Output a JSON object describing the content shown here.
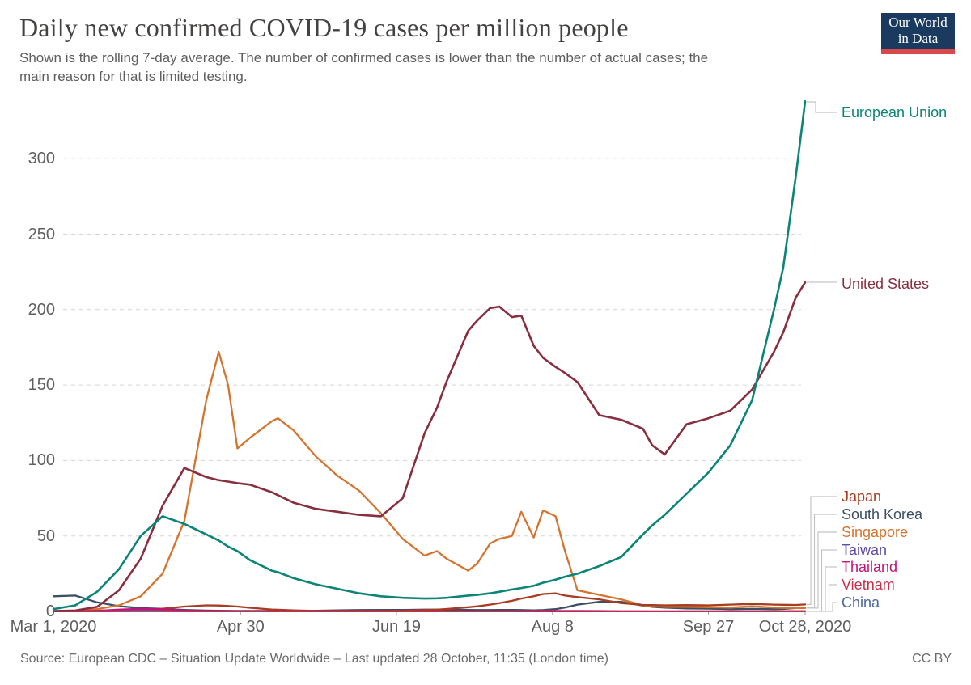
{
  "header": {
    "title": "Daily new confirmed COVID-19 cases per million people",
    "subtitle_line1": "Shown is the rolling 7-day average. The number of confirmed cases is lower than the number of actual cases; the",
    "subtitle_line2": "main reason for that is limited testing.",
    "logo": {
      "line1": "Our World",
      "line2": "in Data",
      "bg_color": "#1b3a5f",
      "accent_color": "#d8494b"
    }
  },
  "chart_data": {
    "type": "line",
    "title": "Daily new confirmed COVID-19 cases per million people",
    "xlabel": "",
    "ylabel": "",
    "grid": {
      "horizontal": true,
      "style": "dashed",
      "color": "#d5d5d5"
    },
    "legend_position": "right-edge-labels",
    "x_axis": {
      "range_days": [
        0,
        241
      ],
      "tick_labels": [
        {
          "label": "Mar 1, 2020",
          "day": 0
        },
        {
          "label": "Apr 30",
          "day": 60
        },
        {
          "label": "Jun 19",
          "day": 110
        },
        {
          "label": "Aug 8",
          "day": 160
        },
        {
          "label": "Sep 27",
          "day": 210
        },
        {
          "label": "Oct 28, 2020",
          "day": 241
        }
      ]
    },
    "y_axis": {
      "ticks": [
        0,
        50,
        100,
        150,
        200,
        250,
        300
      ],
      "max_visible": 340
    },
    "x_days": [
      0,
      7,
      14,
      21,
      28,
      35,
      42,
      49,
      53,
      56,
      59,
      63,
      70,
      72,
      77,
      84,
      91,
      98,
      105,
      112,
      119,
      123,
      126,
      133,
      136,
      140,
      143,
      147,
      150,
      154,
      157,
      161,
      164,
      168,
      175,
      182,
      189,
      192,
      196,
      203,
      210,
      217,
      224,
      231,
      234,
      238,
      241
    ],
    "x_dates": [
      "Mar 1",
      "Mar 8",
      "Mar 15",
      "Mar 22",
      "Mar 29",
      "Apr 5",
      "Apr 12",
      "Apr 19",
      "Apr 23",
      "Apr 26",
      "Apr 29",
      "May 3",
      "May 10",
      "May 12",
      "May 17",
      "May 24",
      "May 31",
      "Jun 7",
      "Jun 14",
      "Jun 21",
      "Jun 28",
      "Jul 2",
      "Jul 5",
      "Jul 12",
      "Jul 15",
      "Jul 19",
      "Jul 22",
      "Jul 26",
      "Jul 29",
      "Aug 2",
      "Aug 5",
      "Aug 9",
      "Aug 12",
      "Aug 16",
      "Aug 23",
      "Aug 30",
      "Sep 6",
      "Sep 9",
      "Sep 13",
      "Sep 20",
      "Sep 27",
      "Oct 4",
      "Oct 11",
      "Oct 18",
      "Oct 21",
      "Oct 25",
      "Oct 28"
    ],
    "series": [
      {
        "name": "European Union",
        "color": "#0c8476",
        "values": [
          1.5,
          4,
          13,
          28,
          50,
          63,
          58,
          51,
          47,
          43,
          40,
          34,
          27,
          26,
          22,
          18,
          15,
          12,
          10,
          9,
          8.5,
          8.7,
          9,
          10.5,
          11,
          12,
          13,
          14.5,
          15.5,
          17,
          19,
          21,
          23,
          25,
          30,
          36,
          51,
          57,
          64,
          78,
          92,
          110,
          140,
          200,
          228,
          288,
          338
        ]
      },
      {
        "name": "United States",
        "color": "#872e3f",
        "values": [
          0.2,
          0.6,
          3,
          14,
          35,
          70,
          95,
          89,
          87,
          86,
          85,
          84,
          79,
          77,
          72,
          68,
          66,
          64,
          63,
          75,
          118,
          135,
          152,
          186,
          193,
          201,
          202,
          195,
          196,
          176,
          168,
          162,
          158,
          152,
          130,
          127,
          121,
          110,
          104,
          124,
          128,
          133,
          147,
          172,
          185,
          208,
          218
        ]
      },
      {
        "name": "Japan",
        "color": "#a83c22",
        "values": [
          0.1,
          0.2,
          0.3,
          0.4,
          0.8,
          1.8,
          3.2,
          4,
          3.9,
          3.6,
          3.2,
          2.4,
          1.3,
          1.1,
          0.7,
          0.4,
          0.3,
          0.3,
          0.4,
          0.5,
          0.9,
          1.2,
          1.6,
          2.8,
          3.4,
          4.5,
          5.5,
          7,
          8.5,
          10,
          11.5,
          12,
          10.5,
          9.5,
          8,
          5.5,
          4.3,
          4.2,
          4,
          4.2,
          4,
          4.5,
          5,
          4.5,
          4.4,
          4.3,
          4.6
        ]
      },
      {
        "name": "South Korea",
        "color": "#3d4e63",
        "values": [
          10,
          10.5,
          6,
          3.5,
          2.2,
          1.7,
          1,
          0.6,
          0.5,
          0.4,
          0.3,
          0.3,
          0.4,
          0.5,
          0.5,
          0.5,
          0.7,
          0.9,
          1,
          1,
          1.2,
          1.2,
          1.2,
          1,
          0.9,
          0.9,
          1,
          1,
          0.9,
          0.7,
          0.9,
          1.5,
          2.5,
          4.5,
          6.3,
          6.4,
          3.8,
          3,
          2.5,
          2,
          1.8,
          1.5,
          1.7,
          1.5,
          1.6,
          2.2,
          2.3
        ]
      },
      {
        "name": "Singapore",
        "color": "#d4742f",
        "values": [
          0.2,
          0.5,
          1.5,
          4,
          10,
          25,
          60,
          140,
          172,
          150,
          108,
          115,
          126,
          128,
          120,
          103,
          90,
          80,
          65,
          48,
          37,
          40,
          35,
          27,
          32,
          45,
          48,
          50,
          66,
          49,
          67,
          63,
          40,
          14,
          11,
          8,
          4,
          3.5,
          3,
          3,
          2.8,
          2.5,
          3.5,
          2.5,
          2.3,
          2.2,
          2.2
        ]
      },
      {
        "name": "Taiwan",
        "color": "#5f4ba3",
        "values": [
          0.1,
          0.15,
          0.3,
          0.8,
          0.9,
          0.7,
          0.5,
          0.3,
          0.25,
          0.2,
          0.15,
          0.1,
          0.05,
          0.05,
          0.05,
          0.05,
          0.05,
          0.05,
          0.05,
          0.05,
          0.05,
          0.05,
          0.05,
          0.05,
          0.05,
          0.05,
          0.05,
          0.05,
          0.05,
          0.05,
          0.05,
          0.05,
          0.05,
          0.1,
          0.1,
          0.05,
          0.05,
          0.05,
          0.05,
          0.1,
          0.1,
          0.1,
          0.1,
          0.15,
          0.15,
          0.2,
          0.2
        ]
      },
      {
        "name": "Thailand",
        "color": "#c2127b",
        "values": [
          0.05,
          0.1,
          0.5,
          1.3,
          1.8,
          1.4,
          0.7,
          0.4,
          0.3,
          0.2,
          0.15,
          0.1,
          0.05,
          0.05,
          0.05,
          0.03,
          0.03,
          0.03,
          0.03,
          0.03,
          0.03,
          0.03,
          0.03,
          0.03,
          0.03,
          0.03,
          0.03,
          0.03,
          0.03,
          0.03,
          0.03,
          0.03,
          0.03,
          0.03,
          0.03,
          0.03,
          0.03,
          0.03,
          0.03,
          0.03,
          0.05,
          0.05,
          0.05,
          0.08,
          0.08,
          0.1,
          0.1
        ]
      },
      {
        "name": "Vietnam",
        "color": "#c5304a",
        "values": [
          0.03,
          0.05,
          0.1,
          0.15,
          0.2,
          0.15,
          0.1,
          0.05,
          0.04,
          0.03,
          0.02,
          0.02,
          0.02,
          0.02,
          0.02,
          0.02,
          0.02,
          0.02,
          0.02,
          0.02,
          0.02,
          0.02,
          0.02,
          0.02,
          0.02,
          0.02,
          0.02,
          0.1,
          0.2,
          0.3,
          0.4,
          0.45,
          0.4,
          0.35,
          0.3,
          0.15,
          0.1,
          0.08,
          0.05,
          0.03,
          0.03,
          0.03,
          0.03,
          0.03,
          0.03,
          0.03,
          0.03
        ]
      },
      {
        "name": "China",
        "color": "#4f689b",
        "values": [
          0.15,
          0.08,
          0.02,
          0.03,
          0.04,
          0.03,
          0.02,
          0.01,
          0.01,
          0.01,
          0.01,
          0.01,
          0.01,
          0.01,
          0.01,
          0.01,
          0.01,
          0.02,
          0.03,
          0.02,
          0.01,
          0.01,
          0.01,
          0.01,
          0.01,
          0.02,
          0.02,
          0.03,
          0.03,
          0.02,
          0.02,
          0.02,
          0.01,
          0.01,
          0.01,
          0.01,
          0.01,
          0.01,
          0.01,
          0.01,
          0.01,
          0.01,
          0.01,
          0.01,
          0.01,
          0.01,
          0.02
        ]
      }
    ]
  },
  "footer": {
    "source": "Source: European CDC – Situation Update Worldwide – Last updated 28 October, 11:35 (London time)",
    "license": "CC BY"
  }
}
